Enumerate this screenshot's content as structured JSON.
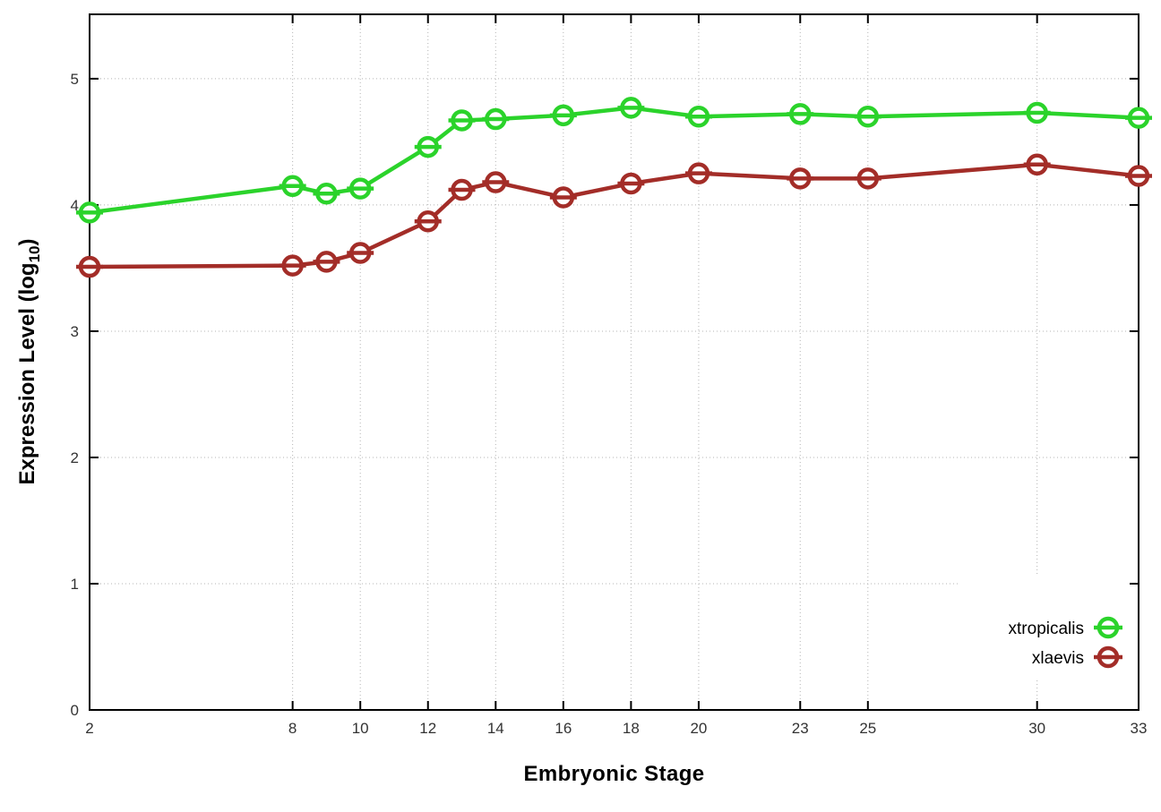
{
  "chart_data": {
    "type": "line",
    "title": "",
    "xlabel": "Embryonic Stage",
    "ylabel": {
      "pre": "Expression Level (log",
      "sub": "10",
      "post": ")"
    },
    "x": [
      2,
      8,
      9,
      10,
      12,
      13,
      14,
      16,
      18,
      20,
      23,
      25,
      30,
      33
    ],
    "xticks": [
      2,
      8,
      10,
      12,
      14,
      16,
      18,
      20,
      23,
      25,
      30,
      33
    ],
    "yticks": [
      0,
      1,
      2,
      3,
      4,
      5
    ],
    "xlim": [
      2,
      33
    ],
    "ylim": [
      0,
      5.51
    ],
    "grid": true,
    "legend": {
      "position": "inside-bottom-right",
      "entries": [
        "xtropicalis",
        "xlaevis"
      ]
    },
    "series": [
      {
        "name": "xtropicalis",
        "color": "#2bd32b",
        "values": [
          3.94,
          4.15,
          4.09,
          4.13,
          4.46,
          4.67,
          4.68,
          4.71,
          4.77,
          4.7,
          4.72,
          4.7,
          4.73,
          4.69
        ]
      },
      {
        "name": "xlaevis",
        "color": "#a32d28",
        "values": [
          3.51,
          3.52,
          3.55,
          3.62,
          3.87,
          4.12,
          4.18,
          4.06,
          4.17,
          4.25,
          4.21,
          4.21,
          4.32,
          4.23
        ]
      }
    ],
    "styles": {
      "grid_color": "#b4b4b4",
      "axis_color": "#000000",
      "tick_label_color": "#333333",
      "marker": "open-circle-with-hbar"
    }
  }
}
